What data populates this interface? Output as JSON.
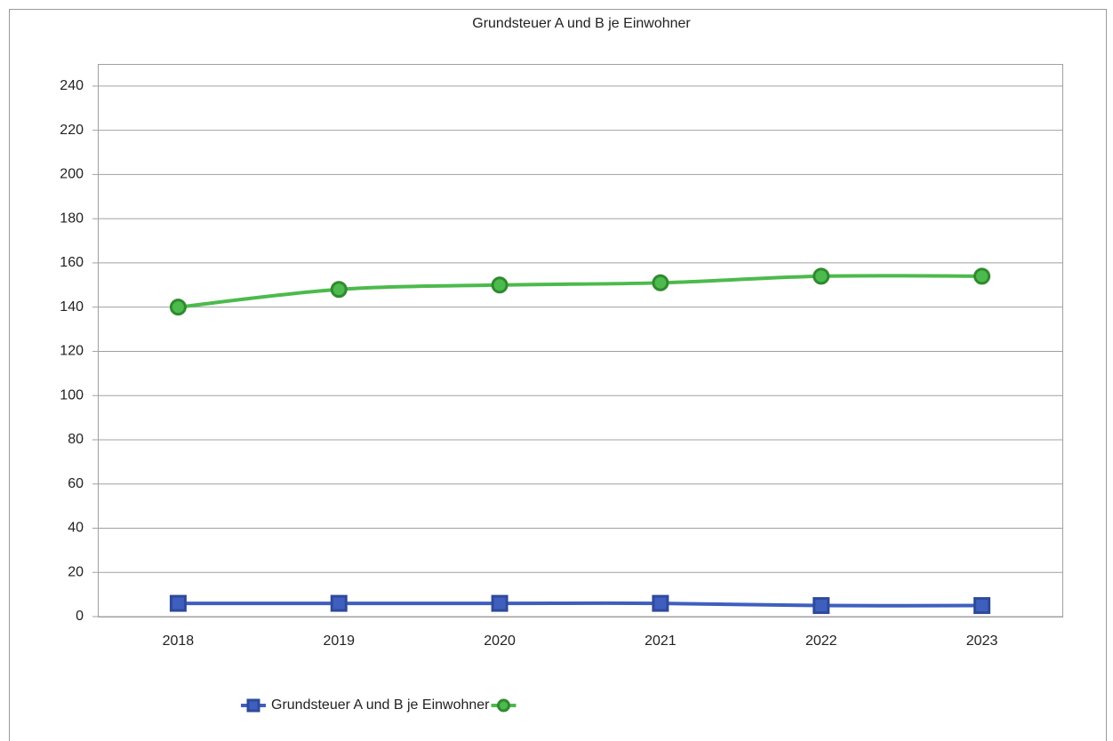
{
  "chart_data": {
    "type": "line",
    "title": "Grundsteuer A und B je Einwohner",
    "categories": [
      "2018",
      "2019",
      "2020",
      "2021",
      "2022",
      "2023"
    ],
    "series": [
      {
        "name": "Grundsteuer A und B je Einwohner",
        "color": "#3f5fbf",
        "marker": "square",
        "values": [
          6,
          6,
          6,
          6,
          5,
          5
        ]
      },
      {
        "color": "#4cba4c",
        "marker": "circle",
        "values": [
          140,
          148,
          150,
          151,
          154,
          154
        ]
      }
    ],
    "ylim": [
      0,
      250
    ],
    "yticks": [
      0,
      20,
      40,
      60,
      80,
      100,
      120,
      140,
      160,
      180,
      200,
      220,
      240
    ],
    "grid": true,
    "legend": "bottom"
  }
}
